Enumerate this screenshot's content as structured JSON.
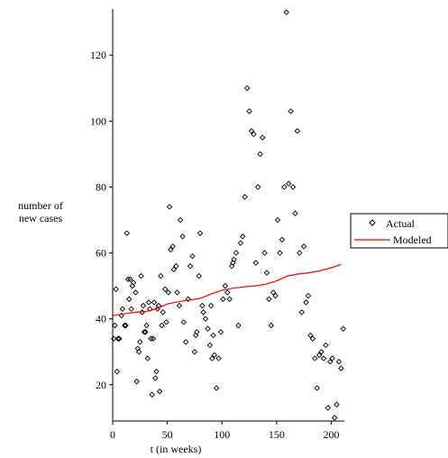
{
  "chart_data": {
    "type": "scatter",
    "xlabel": "t (in weeks)",
    "ylabel_lines": [
      "number of",
      "new cases"
    ],
    "xlim": [
      0,
      212
    ],
    "ylim": [
      9,
      134
    ],
    "xticks": [
      0,
      50,
      100,
      150,
      200
    ],
    "yticks": [
      20,
      40,
      60,
      80,
      100,
      120
    ],
    "legend": {
      "placement": "right",
      "entries": [
        "Actual",
        "Modeled"
      ]
    },
    "colors": {
      "actual": "#000000",
      "modeled": "#ff0000"
    },
    "series": [
      {
        "name": "Actual",
        "marker": "diamond",
        "points": [
          [
            1,
            34
          ],
          [
            2,
            38
          ],
          [
            3,
            49
          ],
          [
            4,
            24
          ],
          [
            5,
            34
          ],
          [
            6,
            34
          ],
          [
            8,
            41
          ],
          [
            9,
            43
          ],
          [
            11,
            38
          ],
          [
            12,
            38
          ],
          [
            13,
            66
          ],
          [
            14,
            52
          ],
          [
            15,
            46
          ],
          [
            16,
            52
          ],
          [
            17,
            43
          ],
          [
            18,
            50
          ],
          [
            19,
            51
          ],
          [
            21,
            48
          ],
          [
            22,
            21
          ],
          [
            23,
            31
          ],
          [
            24,
            30
          ],
          [
            25,
            33
          ],
          [
            26,
            53
          ],
          [
            27,
            42
          ],
          [
            28,
            44
          ],
          [
            29,
            36
          ],
          [
            30,
            36
          ],
          [
            31,
            38
          ],
          [
            32,
            28
          ],
          [
            33,
            45
          ],
          [
            34,
            43
          ],
          [
            35,
            34
          ],
          [
            36,
            17
          ],
          [
            37,
            34
          ],
          [
            38,
            45
          ],
          [
            39,
            22
          ],
          [
            40,
            24
          ],
          [
            41,
            43
          ],
          [
            42,
            44
          ],
          [
            43,
            18
          ],
          [
            44,
            53
          ],
          [
            45,
            38
          ],
          [
            46,
            42
          ],
          [
            48,
            49
          ],
          [
            49,
            39
          ],
          [
            51,
            48
          ],
          [
            52,
            74
          ],
          [
            53,
            61
          ],
          [
            55,
            62
          ],
          [
            56,
            55
          ],
          [
            58,
            56
          ],
          [
            59,
            48
          ],
          [
            61,
            44
          ],
          [
            62,
            70
          ],
          [
            64,
            65
          ],
          [
            65,
            39
          ],
          [
            67,
            33
          ],
          [
            69,
            46
          ],
          [
            71,
            56
          ],
          [
            73,
            59
          ],
          [
            75,
            30
          ],
          [
            76,
            35
          ],
          [
            77,
            36
          ],
          [
            79,
            53
          ],
          [
            80,
            66
          ],
          [
            82,
            44
          ],
          [
            83,
            42
          ],
          [
            85,
            40
          ],
          [
            87,
            37
          ],
          [
            89,
            32
          ],
          [
            90,
            44
          ],
          [
            91,
            28
          ],
          [
            92,
            35
          ],
          [
            93,
            29
          ],
          [
            95,
            19
          ],
          [
            97,
            28
          ],
          [
            99,
            36
          ],
          [
            101,
            46
          ],
          [
            103,
            50
          ],
          [
            105,
            48
          ],
          [
            107,
            46
          ],
          [
            109,
            56
          ],
          [
            110,
            57
          ],
          [
            111,
            58
          ],
          [
            113,
            60
          ],
          [
            115,
            38
          ],
          [
            117,
            63
          ],
          [
            119,
            65
          ],
          [
            121,
            77
          ],
          [
            123,
            110
          ],
          [
            125,
            103
          ],
          [
            127,
            97
          ],
          [
            129,
            96
          ],
          [
            131,
            57
          ],
          [
            133,
            80
          ],
          [
            135,
            90
          ],
          [
            137,
            95
          ],
          [
            139,
            60
          ],
          [
            141,
            54
          ],
          [
            143,
            46
          ],
          [
            145,
            38
          ],
          [
            147,
            48
          ],
          [
            149,
            47
          ],
          [
            151,
            70
          ],
          [
            153,
            60
          ],
          [
            155,
            64
          ],
          [
            157,
            80
          ],
          [
            159,
            133
          ],
          [
            161,
            81
          ],
          [
            163,
            103
          ],
          [
            165,
            80
          ],
          [
            167,
            72
          ],
          [
            169,
            97
          ],
          [
            171,
            60
          ],
          [
            173,
            42
          ],
          [
            175,
            62
          ],
          [
            177,
            45
          ],
          [
            179,
            47
          ],
          [
            181,
            35
          ],
          [
            183,
            34
          ],
          [
            185,
            28
          ],
          [
            187,
            19
          ],
          [
            189,
            29
          ],
          [
            191,
            30
          ],
          [
            193,
            28
          ],
          [
            195,
            32
          ],
          [
            197,
            13
          ],
          [
            199,
            27
          ],
          [
            201,
            28
          ],
          [
            203,
            10
          ],
          [
            205,
            14
          ],
          [
            207,
            27
          ],
          [
            209,
            25
          ],
          [
            211,
            37
          ]
        ]
      },
      {
        "name": "Modeled",
        "marker": "line",
        "points": [
          [
            0,
            41
          ],
          [
            10,
            41.5
          ],
          [
            20,
            42
          ],
          [
            30,
            42.2
          ],
          [
            40,
            43
          ],
          [
            50,
            44.5
          ],
          [
            60,
            45.2
          ],
          [
            70,
            45.7
          ],
          [
            80,
            46.2
          ],
          [
            90,
            47.5
          ],
          [
            100,
            48.7
          ],
          [
            110,
            49.3
          ],
          [
            120,
            49.7
          ],
          [
            130,
            50
          ],
          [
            140,
            50.5
          ],
          [
            150,
            51.5
          ],
          [
            160,
            53
          ],
          [
            170,
            53.6
          ],
          [
            180,
            54
          ],
          [
            190,
            54.6
          ],
          [
            200,
            55.5
          ],
          [
            209,
            56.5
          ]
        ]
      }
    ]
  }
}
